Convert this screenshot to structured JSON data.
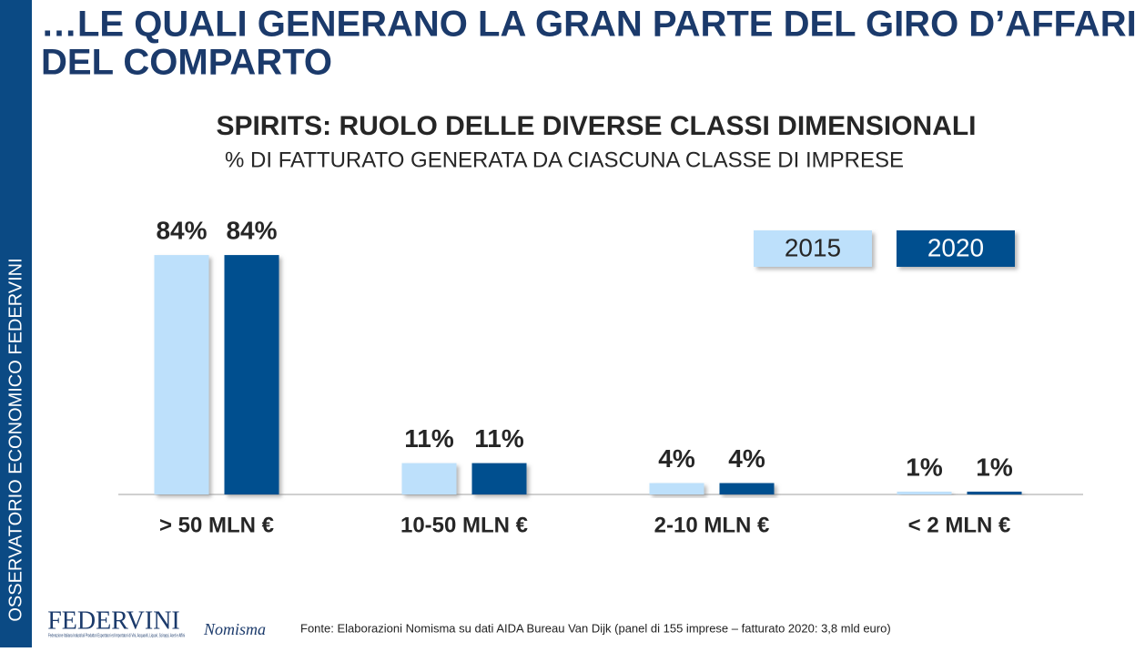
{
  "slide_title_line1": "…LE QUALI GENERANO LA GRAN PARTE DEL GIRO D’AFFARI",
  "slide_title_line2": "DEL COMPARTO",
  "sidebar": "OSSERVATORIO ECONOMICO  FEDERVINI",
  "logos": {
    "federvini": "FEDERVINI",
    "federvini_caption": "Federazione Italiana Industriali Produttori Esportatori ed Importatori di Vini, Acquaviti, Liquori, Sciroppi, Aceti e Affini",
    "nomisma": "Nomisma"
  },
  "source": "Fonte: Elaborazioni Nomisma su dati AIDA Bureau Van Dijk (panel di 155 imprese – fatturato 2020: 3,8 mld euro)",
  "chart_data": {
    "type": "bar",
    "title": "SPIRITS: RUOLO DELLE DIVERSE CLASSI DIMENSIONALI",
    "subtitle": "% DI FATTURATO GENERATA DA CIASCUNA CLASSE DI IMPRESE",
    "categories": [
      "> 50 MLN €",
      "10-50 MLN €",
      "2-10 MLN €",
      "< 2 MLN €"
    ],
    "series": [
      {
        "name": "2015",
        "color": "#bde0fb",
        "values": [
          84,
          11,
          4,
          1
        ],
        "value_labels": [
          "84%",
          "11%",
          "4%",
          "1%"
        ]
      },
      {
        "name": "2020",
        "color": "#00508f",
        "values": [
          84,
          11,
          4,
          1
        ],
        "value_labels": [
          "84%",
          "11%",
          "4%",
          "1%"
        ]
      }
    ]
  }
}
